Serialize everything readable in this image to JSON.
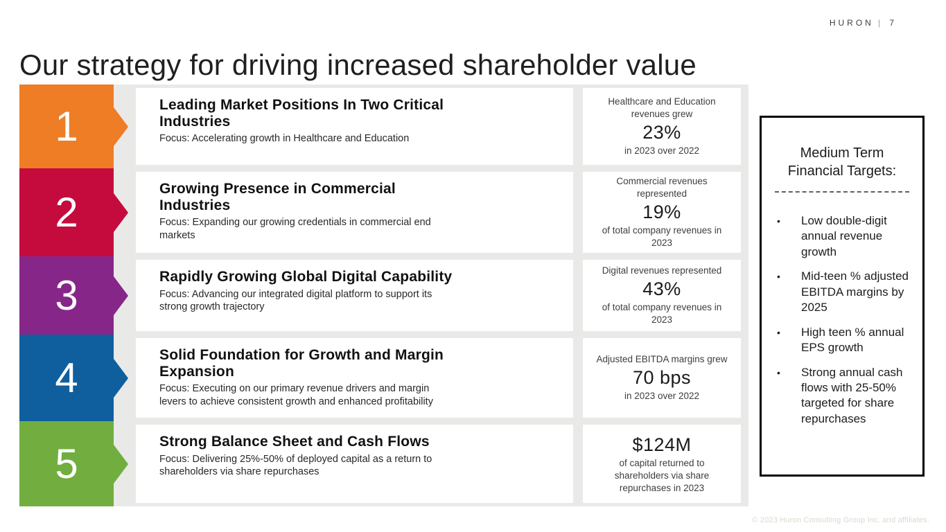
{
  "header": {
    "brand": "HURON",
    "separator": "|",
    "page": "7"
  },
  "title": "Our strategy for driving increased shareholder value",
  "steps": [
    {
      "number": "1",
      "color": "#ee7d26",
      "heading": "Leading Market Positions In Two Critical\nIndustries",
      "focus": "Focus: Accelerating growth in Healthcare and Education",
      "stat": {
        "pre": "Healthcare and Education revenues grew",
        "value": "23%",
        "post": "in 2023 over 2022"
      }
    },
    {
      "number": "2",
      "color": "#c50b3d",
      "heading": "Growing Presence in Commercial\nIndustries",
      "focus": "Focus: Expanding our growing credentials in commercial end\nmarkets",
      "stat": {
        "pre": "Commercial revenues represented",
        "value": "19%",
        "post": "of total company revenues in 2023"
      }
    },
    {
      "number": "3",
      "color": "#872689",
      "heading": "Rapidly Growing Global Digital Capability",
      "focus": "Focus: Advancing our integrated digital platform to support its\nstrong growth trajectory",
      "stat": {
        "pre": "Digital revenues represented",
        "value": "43%",
        "post": "of total company revenues in 2023"
      }
    },
    {
      "number": "4",
      "color": "#0f5f9e",
      "heading": "Solid Foundation for Growth and Margin\nExpansion",
      "focus": "Focus: Executing on our primary revenue drivers and margin\nlevers to achieve consistent growth and enhanced profitability",
      "stat": {
        "pre": "Adjusted EBITDA margins grew",
        "value": "70 bps",
        "post": "in 2023 over 2022"
      }
    },
    {
      "number": "5",
      "color": "#71ae3f",
      "heading": "Strong Balance Sheet and Cash Flows",
      "focus": "Focus: Delivering 25%-50% of deployed capital as a return to\nshareholders via share repurchases",
      "stat": {
        "pre": "",
        "value": "$124M",
        "post": "of capital returned to shareholders via share repurchases in 2023"
      }
    }
  ],
  "targets_panel": {
    "title": "Medium Term Financial Targets:",
    "bullet_glyph": "•",
    "items": [
      "Low double-digit annual revenue growth",
      "Mid-teen % adjusted EBITDA margins by 2025",
      "High teen % annual EPS growth",
      "Strong annual cash flows with 25-50% targeted for share repurchases"
    ]
  },
  "footer": {
    "copyright": "© 2023 Huron Consulting Group Inc. and affiliates."
  },
  "colors": {
    "background_panel": "#e9e9e8",
    "card": "#ffffff",
    "panel_border": "#000000"
  }
}
